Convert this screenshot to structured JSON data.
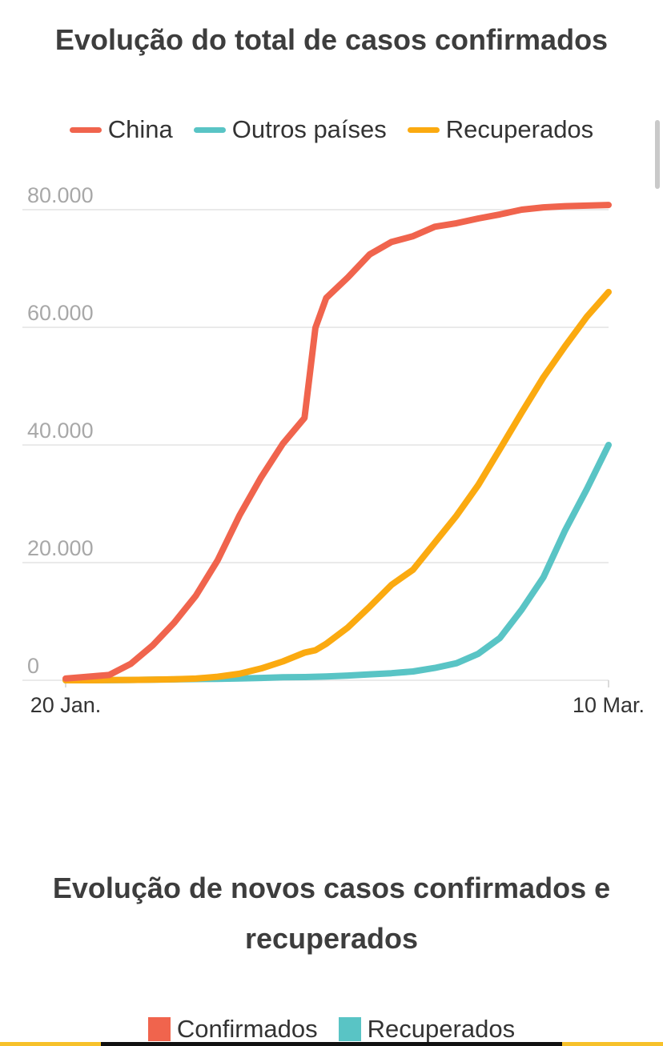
{
  "chart1": {
    "title": "Evolução do total de casos confirmados"
  },
  "chart2": {
    "title": "Evolução de novos casos confirmados e recuperados",
    "legend": [
      {
        "label": "Confirmados",
        "color": "#f0644d"
      },
      {
        "label": "Recuperados",
        "color": "#59c4c5"
      }
    ]
  },
  "colors": {
    "china": "#f0644d",
    "outros": "#59c4c5",
    "recuperados": "#fbaa10",
    "grid": "#e3e3e3",
    "tick_label": "#a8a8a8",
    "strip_yellow": "#f7c12a",
    "strip_black": "#111111"
  },
  "chart_data": {
    "type": "line",
    "title": "Evolução do total de casos confirmados",
    "xlabel": "",
    "ylabel": "",
    "x_tick_labels": [
      "20 Jan.",
      "10 Mar."
    ],
    "x_range": [
      "2020-01-20",
      "2020-03-10"
    ],
    "y_tick_labels": [
      "0",
      "20.000",
      "40.000",
      "60.000",
      "80.000"
    ],
    "ylim": [
      0,
      80000
    ],
    "grid": true,
    "legend_position": "top",
    "x": [
      "2020-01-20",
      "2020-01-22",
      "2020-01-24",
      "2020-01-26",
      "2020-01-28",
      "2020-01-30",
      "2020-02-01",
      "2020-02-03",
      "2020-02-05",
      "2020-02-07",
      "2020-02-09",
      "2020-02-11",
      "2020-02-12",
      "2020-02-13",
      "2020-02-15",
      "2020-02-17",
      "2020-02-19",
      "2020-02-21",
      "2020-02-23",
      "2020-02-25",
      "2020-02-27",
      "2020-02-29",
      "2020-03-02",
      "2020-03-04",
      "2020-03-06",
      "2020-03-08",
      "2020-03-10"
    ],
    "series": [
      {
        "name": "China",
        "color": "#f0644d",
        "values": [
          300,
          600,
          900,
          2800,
          5900,
          9800,
          14400,
          20400,
          28000,
          34500,
          40200,
          44600,
          59900,
          65000,
          68500,
          72400,
          74500,
          75500,
          77100,
          77700,
          78500,
          79200,
          80000,
          80400,
          80600,
          80700,
          80800
        ]
      },
      {
        "name": "Outros países",
        "color": "#59c4c5",
        "values": [
          0,
          0,
          10,
          50,
          100,
          150,
          200,
          250,
          300,
          400,
          500,
          550,
          600,
          650,
          800,
          1000,
          1200,
          1500,
          2100,
          2900,
          4500,
          7200,
          12000,
          17500,
          25500,
          32500,
          40000
        ]
      },
      {
        "name": "Recuperados",
        "color": "#fbaa10",
        "values": [
          0,
          0,
          30,
          50,
          100,
          170,
          280,
          600,
          1100,
          2000,
          3200,
          4700,
          5100,
          6200,
          9000,
          12500,
          16200,
          18800,
          23400,
          28000,
          33200,
          39300,
          45500,
          51500,
          56800,
          61800,
          66000
        ]
      }
    ]
  }
}
